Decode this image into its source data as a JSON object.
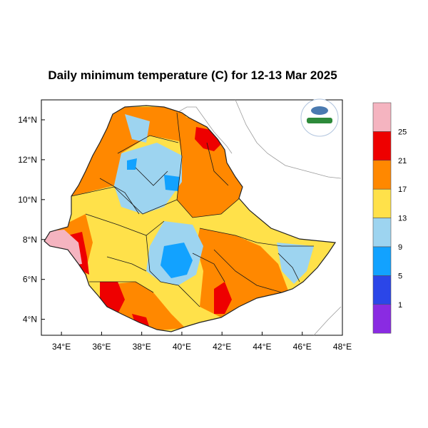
{
  "title": "Daily minimum temperature (C) for 12-13 Mar 2025",
  "map": {
    "lon_range": [
      33,
      48
    ],
    "lat_range": [
      3.2,
      15
    ],
    "x_ticks": [
      {
        "value": 34,
        "label": "34°E"
      },
      {
        "value": 36,
        "label": "36°E"
      },
      {
        "value": 38,
        "label": "38°E"
      },
      {
        "value": 40,
        "label": "40°E"
      },
      {
        "value": 42,
        "label": "42°E"
      },
      {
        "value": 44,
        "label": "44°E"
      },
      {
        "value": 46,
        "label": "46°E"
      },
      {
        "value": 48,
        "label": "48°E"
      }
    ],
    "y_ticks": [
      {
        "value": 14,
        "label": "14°N"
      },
      {
        "value": 12,
        "label": "12°N"
      },
      {
        "value": 10,
        "label": "10°N"
      },
      {
        "value": 8,
        "label": "8°N"
      },
      {
        "value": 6,
        "label": "6°N"
      },
      {
        "value": 4,
        "label": "4°N"
      }
    ]
  },
  "legend": {
    "bins": [
      {
        "color": "#f5b4c0"
      },
      {
        "color": "#ee0000"
      },
      {
        "color": "#ff8800"
      },
      {
        "color": "#ffe14a"
      },
      {
        "color": "#9dd4f0"
      },
      {
        "color": "#12a2ff"
      },
      {
        "color": "#2b46e8"
      },
      {
        "color": "#8a2be2"
      }
    ],
    "labels": [
      "25",
      "21",
      "17",
      "13",
      "9",
      "5",
      "1"
    ]
  },
  "logo": {
    "colors": [
      "#4a7ab0",
      "#ffffff",
      "#2d8a3a"
    ]
  }
}
